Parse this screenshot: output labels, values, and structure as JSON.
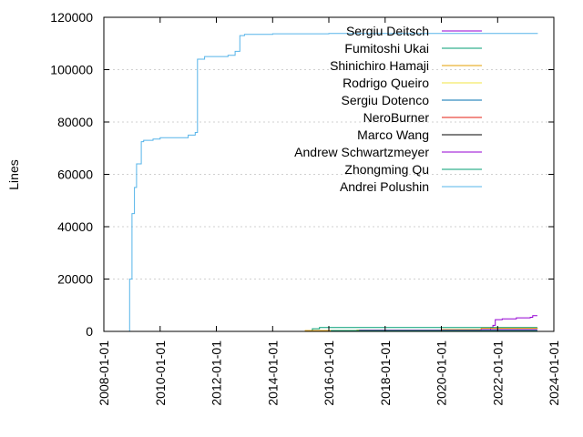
{
  "chart_data": {
    "type": "line",
    "title": "",
    "xlabel": "",
    "ylabel": "Lines",
    "xlim": [
      "2008-01-01",
      "2024-01-01"
    ],
    "ylim": [
      0,
      120000
    ],
    "grid": "dashed, y-axis",
    "legend_position": "top-right",
    "x_ticks": [
      "2008-01-01",
      "2010-01-01",
      "2012-01-01",
      "2014-01-01",
      "2016-01-01",
      "2018-01-01",
      "2020-01-01",
      "2022-01-01",
      "2024-01-01"
    ],
    "y_ticks": [
      0,
      20000,
      40000,
      60000,
      80000,
      100000,
      120000
    ],
    "y_tick_labels": [
      "0",
      "20000",
      "40000",
      "60000",
      "80000",
      "100000",
      "120000"
    ],
    "series": [
      {
        "name": "Sergiu Deitsch",
        "color": "#9400d3",
        "points": [
          [
            "2021-09-01",
            0
          ],
          [
            "2021-10-01",
            1500
          ],
          [
            "2021-11-01",
            2300
          ],
          [
            "2021-12-01",
            4500
          ],
          [
            "2022-03-01",
            4800
          ],
          [
            "2022-09-01",
            5200
          ],
          [
            "2023-03-01",
            5400
          ],
          [
            "2023-04-01",
            6000
          ],
          [
            "2023-06-01",
            6000
          ]
        ]
      },
      {
        "name": "Fumitoshi Ukai",
        "color": "#009e73",
        "points": [
          [
            "2015-01-01",
            0
          ],
          [
            "2015-06-01",
            1000
          ],
          [
            "2015-09-01",
            1500
          ],
          [
            "2023-06-01",
            1500
          ]
        ]
      },
      {
        "name": "Shinichiro Hamaji",
        "color": "#e69f00",
        "points": [
          [
            "2015-01-01",
            0
          ],
          [
            "2015-03-01",
            300
          ],
          [
            "2017-01-01",
            500
          ],
          [
            "2020-01-01",
            700
          ],
          [
            "2021-06-01",
            1200
          ],
          [
            "2023-06-01",
            1300
          ]
        ]
      },
      {
        "name": "Rodrigo Queiro",
        "color": "#f0e442",
        "points": [
          [
            "2016-01-01",
            0
          ],
          [
            "2016-02-01",
            200
          ],
          [
            "2023-06-01",
            200
          ]
        ]
      },
      {
        "name": "Sergiu Dotenco",
        "color": "#0072b2",
        "points": [
          [
            "2017-06-01",
            0
          ],
          [
            "2017-07-01",
            150
          ],
          [
            "2023-06-01",
            150
          ]
        ]
      },
      {
        "name": "NeroBurner",
        "color": "#e51e10",
        "points": [
          [
            "2018-01-01",
            0
          ],
          [
            "2018-02-01",
            100
          ],
          [
            "2023-06-01",
            100
          ]
        ]
      },
      {
        "name": "Marco Wang",
        "color": "#000000",
        "points": [
          [
            "2019-01-01",
            0
          ],
          [
            "2019-02-01",
            100
          ],
          [
            "2023-06-01",
            100
          ]
        ]
      },
      {
        "name": "Andrew Schwartzmeyer",
        "color": "#9400d3",
        "points": [
          [
            "2017-01-01",
            0
          ],
          [
            "2017-02-01",
            500
          ],
          [
            "2021-06-01",
            700
          ],
          [
            "2023-06-01",
            700
          ]
        ]
      },
      {
        "name": "Zhongming Qu",
        "color": "#009e73",
        "points": [
          [
            "2016-01-01",
            0
          ],
          [
            "2016-02-01",
            300
          ],
          [
            "2023-06-01",
            300
          ]
        ]
      },
      {
        "name": "Andrei Polushin",
        "color": "#56b4e9",
        "points": [
          [
            "2008-11-01",
            0
          ],
          [
            "2008-12-01",
            20000
          ],
          [
            "2009-01-01",
            45000
          ],
          [
            "2009-02-01",
            55000
          ],
          [
            "2009-03-01",
            64000
          ],
          [
            "2009-05-01",
            72500
          ],
          [
            "2009-06-01",
            73000
          ],
          [
            "2009-10-01",
            73500
          ],
          [
            "2010-01-01",
            74000
          ],
          [
            "2011-01-01",
            75000
          ],
          [
            "2011-04-01",
            76000
          ],
          [
            "2011-05-01",
            104000
          ],
          [
            "2011-08-01",
            105000
          ],
          [
            "2012-06-01",
            105500
          ],
          [
            "2012-09-01",
            107000
          ],
          [
            "2012-11-01",
            113000
          ],
          [
            "2013-01-01",
            113500
          ],
          [
            "2014-01-01",
            113700
          ],
          [
            "2016-01-01",
            113800
          ],
          [
            "2023-06-01",
            114000
          ]
        ]
      }
    ]
  }
}
